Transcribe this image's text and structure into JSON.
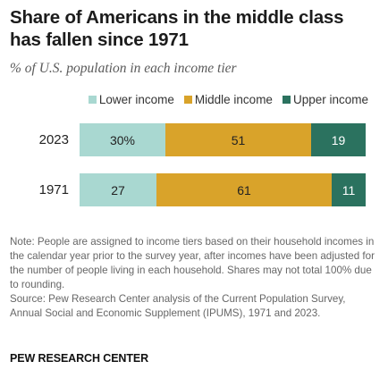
{
  "header": {
    "title": "Share of Americans in the middle class has fallen since 1971",
    "subtitle": "% of U.S. population in each income tier"
  },
  "colors": {
    "lower": "#a9d8d1",
    "middle": "#d9a32a",
    "upper": "#2b725f"
  },
  "chart_data": {
    "type": "bar",
    "orientation": "horizontal",
    "stacked": true,
    "title": "Share of Americans in the middle class has fallen since 1971",
    "subtitle": "% of U.S. population in each income tier",
    "categories": [
      "2023",
      "1971"
    ],
    "series": [
      {
        "name": "Lower income",
        "values": [
          30,
          27
        ],
        "labels": [
          "30%",
          "27"
        ],
        "color": "#a9d8d1"
      },
      {
        "name": "Middle income",
        "values": [
          51,
          61
        ],
        "labels": [
          "51",
          "61"
        ],
        "color": "#d9a32a"
      },
      {
        "name": "Upper income",
        "values": [
          19,
          11
        ],
        "labels": [
          "19",
          "11"
        ],
        "color": "#2b725f"
      }
    ],
    "xlim": [
      0,
      100
    ],
    "legend": "top-right",
    "grid": false
  },
  "notes": {
    "note": "Note: People are assigned to income tiers based on their household incomes in the calendar year prior to the survey year, after incomes have been adjusted for the number of people living in each household. Shares may not total 100% due to rounding.",
    "source": "Source: Pew Research Center analysis of the Current Population Survey, Annual Social and Economic Supplement (IPUMS), 1971 and 2023."
  },
  "footer": {
    "brand": "PEW RESEARCH CENTER"
  }
}
